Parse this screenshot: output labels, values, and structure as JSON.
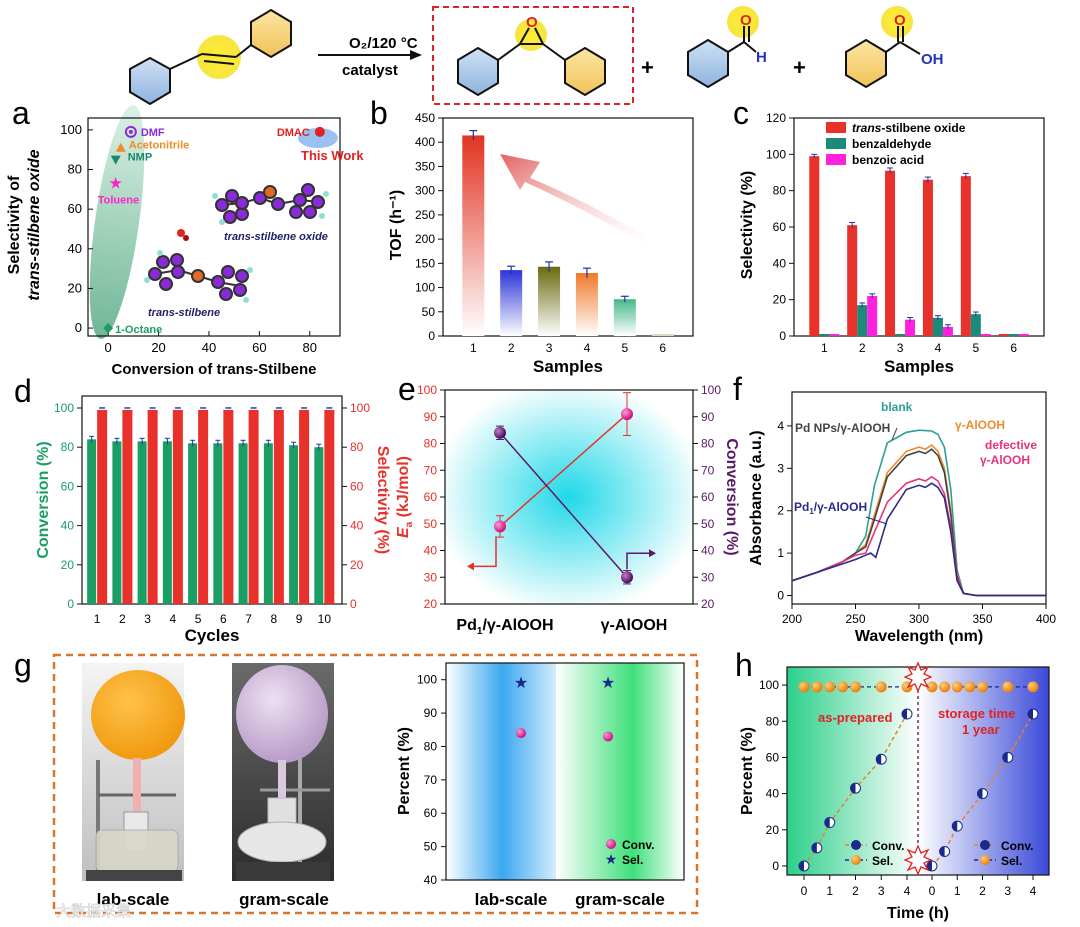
{
  "scheme": {
    "reaction_conditions": "O₂/120 °C",
    "catalyst_label": "catalyst",
    "plus": "+",
    "aldehyde_O": "O",
    "aldehyde_H": "H",
    "acid_O": "O",
    "acid_OH": "OH",
    "epoxide_O": "O"
  },
  "colors": {
    "red": "#e8312a",
    "teal": "#1c8a78",
    "magenta": "#ff22dd",
    "green": "#1a9e63",
    "purple": "#5a1a66",
    "navy": "#1a2a8a",
    "orange": "#ee8a22",
    "frame_orange": "#d9752a"
  },
  "chart_data": [
    {
      "id": "a",
      "type": "scatter",
      "panel_label": "a",
      "xlabel": "Conversion of trans-Stilbene",
      "ylabel_line1": "Selectivity of",
      "ylabel_line2": "trans-stilbene oxide",
      "xlim": [
        -8,
        92
      ],
      "ylim": [
        -4,
        106
      ],
      "xticks": [
        0,
        20,
        40,
        60,
        80
      ],
      "yticks": [
        0,
        20,
        40,
        60,
        80,
        100
      ],
      "points": [
        {
          "name": "DMF",
          "x": 9,
          "y": 99
        },
        {
          "name": "Acetonitrile",
          "x": 5,
          "y": 91
        },
        {
          "name": "NMP",
          "x": 3,
          "y": 85
        },
        {
          "name": "Toluene",
          "x": 3,
          "y": 73
        },
        {
          "name": "1-Octane",
          "x": 0,
          "y": 0
        },
        {
          "name": "DMAC",
          "x": 84,
          "y": 99
        }
      ],
      "annotations": [
        "This Work",
        "trans-stilbene oxide",
        "trans-stilbene"
      ]
    },
    {
      "id": "b",
      "type": "bar",
      "panel_label": "b",
      "title": "",
      "xlabel": "Samples",
      "ylabel": "TOF (h⁻¹)",
      "ylim": [
        0,
        450
      ],
      "yticks": [
        0,
        50,
        100,
        150,
        200,
        250,
        300,
        350,
        400,
        450
      ],
      "categories": [
        "1",
        "2",
        "3",
        "4",
        "5",
        "6"
      ],
      "values": [
        414,
        136,
        143,
        130,
        76,
        3
      ],
      "errors": [
        10,
        8,
        10,
        10,
        6,
        0
      ],
      "bar_colors": [
        "#e23322",
        "#2b35d8",
        "#6a6a10",
        "#f07a2a",
        "#46b88a",
        "#9a9a70"
      ]
    },
    {
      "id": "c",
      "type": "bar",
      "panel_label": "c",
      "xlabel": "Samples",
      "ylabel": "Selectivity (%)",
      "ylim": [
        0,
        120
      ],
      "yticks": [
        0,
        20,
        40,
        60,
        80,
        100,
        120
      ],
      "categories": [
        "1",
        "2",
        "3",
        "4",
        "5",
        "6"
      ],
      "series": [
        {
          "name": "trans-stilbene oxide",
          "legend_italic": "trans",
          "legend_rest": "-stilbene oxide",
          "values": [
            99,
            61,
            91,
            86,
            88,
            0
          ],
          "errors": [
            1,
            1.5,
            1.5,
            1.5,
            1.5,
            0
          ]
        },
        {
          "name": "benzaldehyde",
          "values": [
            0,
            17,
            0,
            10,
            12,
            0
          ],
          "errors": [
            0,
            1.2,
            0,
            1.2,
            1.2,
            0
          ]
        },
        {
          "name": "benzoic acid",
          "values": [
            0,
            22,
            9,
            5,
            0,
            0
          ],
          "errors": [
            0,
            1.2,
            1.2,
            1.2,
            0,
            0
          ]
        }
      ]
    },
    {
      "id": "d",
      "type": "bar",
      "panel_label": "d",
      "xlabel": "Cycles",
      "ylabel_left": "Conversion (%)",
      "ylabel_right": "Selectivity (%)",
      "ylim": [
        0,
        100
      ],
      "yticks": [
        0,
        20,
        40,
        60,
        80,
        100
      ],
      "categories": [
        "1",
        "2",
        "3",
        "4",
        "5",
        "6",
        "7",
        "8",
        "9",
        "10"
      ],
      "series": [
        {
          "name": "Conversion",
          "values": [
            84,
            83,
            83,
            83,
            82,
            82,
            82,
            82,
            81,
            80
          ]
        },
        {
          "name": "Selectivity",
          "values": [
            99,
            99,
            99,
            99,
            99,
            99,
            99,
            99,
            99,
            99
          ]
        }
      ]
    },
    {
      "id": "e",
      "type": "line",
      "panel_label": "e",
      "categories": [
        "Pd₁/γ-AlOOH",
        "γ-AlOOH"
      ],
      "cat_main": [
        "Pd",
        "γ-AlOOH"
      ],
      "cat_sub": "1",
      "cat_rest": "/γ-AlOOH",
      "ylabel_left_main": "E",
      "ylabel_left_sub": "a",
      "ylabel_left_rest": " (kJ/mol)",
      "ylabel_right": "Conversion (%)",
      "ylim": [
        20,
        100
      ],
      "yticks": [
        20,
        30,
        40,
        50,
        60,
        70,
        80,
        90,
        100
      ],
      "series": [
        {
          "name": "Ea",
          "values": [
            49,
            91
          ],
          "errors": [
            4,
            8
          ]
        },
        {
          "name": "Conversion",
          "values": [
            84,
            30
          ],
          "errors": [
            2.5,
            2.5
          ]
        }
      ]
    },
    {
      "id": "f",
      "type": "line",
      "panel_label": "f",
      "xlabel": "Wavelength (nm)",
      "ylabel": "Absorbance (a.u.)",
      "xlim": [
        200,
        400
      ],
      "ylim": [
        -0.2,
        4.8
      ],
      "xticks": [
        200,
        250,
        300,
        350,
        400
      ],
      "yticks": [
        0,
        1,
        2,
        3,
        4
      ],
      "series": [
        {
          "name": "blank",
          "x": [
            200,
            220,
            240,
            250,
            258,
            265,
            275,
            290,
            300,
            310,
            315,
            320,
            325,
            330,
            335,
            345,
            400
          ],
          "y": [
            0.35,
            0.55,
            0.8,
            1.0,
            1.4,
            2.6,
            3.6,
            3.85,
            3.9,
            3.88,
            3.8,
            3.5,
            2.5,
            0.6,
            0.05,
            0.0,
            0.0
          ]
        },
        {
          "name": "γ-AlOOH",
          "x": [
            200,
            220,
            240,
            250,
            258,
            265,
            275,
            290,
            300,
            305,
            310,
            315,
            320,
            325,
            330,
            335,
            345,
            400
          ],
          "y": [
            0.35,
            0.55,
            0.8,
            1.0,
            1.2,
            1.9,
            2.9,
            3.4,
            3.5,
            3.45,
            3.55,
            3.4,
            3.0,
            2.0,
            0.5,
            0.05,
            0.0,
            0.0
          ]
        },
        {
          "name": "Pd NPs/γ-AlOOH",
          "x": [
            200,
            220,
            240,
            250,
            258,
            265,
            275,
            290,
            300,
            305,
            310,
            315,
            320,
            325,
            330,
            335,
            345,
            400
          ],
          "y": [
            0.35,
            0.55,
            0.8,
            1.0,
            1.15,
            1.8,
            2.8,
            3.3,
            3.4,
            3.35,
            3.45,
            3.3,
            2.9,
            1.9,
            0.45,
            0.05,
            0.0,
            0.0
          ]
        },
        {
          "name": "defective γ-AlOOH",
          "x": [
            200,
            220,
            240,
            250,
            258,
            265,
            275,
            290,
            300,
            305,
            310,
            315,
            320,
            325,
            330,
            335,
            345,
            400
          ],
          "y": [
            0.35,
            0.55,
            0.8,
            0.95,
            1.0,
            1.5,
            2.2,
            2.65,
            2.75,
            2.7,
            2.8,
            2.7,
            2.4,
            1.6,
            0.4,
            0.05,
            0.0,
            0.0
          ]
        },
        {
          "name": "Pd₁/γ-AlOOH",
          "x": [
            200,
            220,
            240,
            250,
            258,
            262,
            266,
            275,
            290,
            300,
            305,
            310,
            315,
            320,
            325,
            330,
            335,
            345,
            400
          ],
          "y": [
            0.35,
            0.55,
            0.75,
            0.85,
            0.95,
            1.0,
            0.9,
            1.8,
            2.5,
            2.6,
            2.55,
            2.65,
            2.55,
            2.3,
            1.5,
            0.35,
            0.05,
            0.0,
            0.0
          ]
        }
      ],
      "series_colors": [
        "#2e9e98",
        "#f08a2a",
        "#444444",
        "#e8337a",
        "#2a2a8a"
      ],
      "series_labels": {
        "blank": "blank",
        "alooh": "γ-AlOOH",
        "pdnp": "Pd NPs/γ-AlOOH",
        "defective_1": "defective",
        "defective_2": "γ-AlOOH",
        "pd1_main": "Pd",
        "pd1_sub": "1",
        "pd1_rest": "/γ-AlOOH"
      }
    },
    {
      "id": "g",
      "type": "scatter",
      "panel_label": "g",
      "ylabel": "Percent (%)",
      "ylim": [
        40,
        105
      ],
      "yticks": [
        40,
        50,
        60,
        70,
        80,
        90,
        100
      ],
      "categories": [
        "lab-scale",
        "gram-scale"
      ],
      "series": [
        {
          "name": "Conv.",
          "values": [
            84,
            83
          ]
        },
        {
          "name": "Sel.",
          "values": [
            99,
            99
          ]
        }
      ],
      "photo_labels": [
        "lab-scale",
        "gram-scale"
      ]
    },
    {
      "id": "h",
      "type": "scatter",
      "panel_label": "h",
      "xlabel": "Time (h)",
      "ylabel": "Percent (%)",
      "ylim": [
        -5,
        110
      ],
      "yticks": [
        0,
        20,
        40,
        60,
        80,
        100
      ],
      "xticks": [
        "0",
        "1",
        "2",
        "3",
        "4",
        "0",
        "1",
        "2",
        "3",
        "4"
      ],
      "segments": [
        {
          "label": "as-prepared",
          "x": [
            0,
            0.5,
            1,
            2,
            3,
            4
          ],
          "conv": [
            0,
            10,
            24,
            43,
            59,
            84
          ],
          "sel": [
            99,
            99,
            99,
            99,
            99,
            99
          ]
        },
        {
          "label_1": "storage time",
          "label_2": "1 year",
          "x": [
            0,
            0.5,
            1,
            2,
            3,
            4
          ],
          "conv": [
            0,
            8,
            22,
            40,
            60,
            84
          ],
          "sel": [
            99,
            99,
            99,
            99,
            99,
            99
          ]
        }
      ],
      "legend": [
        "Conv.",
        "Sel."
      ]
    }
  ],
  "watermark": "大数据采集"
}
